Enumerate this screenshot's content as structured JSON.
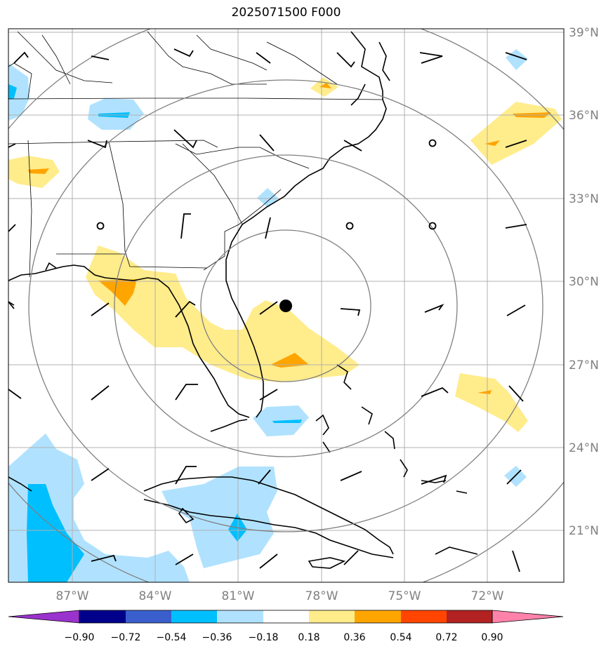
{
  "title": "2025071500 F000",
  "map": {
    "lat_labels": [
      "39°N",
      "36°N",
      "33°N",
      "30°N",
      "27°N",
      "24°N",
      "21°N"
    ],
    "lon_labels": [
      "87°W",
      "84°W",
      "81°W",
      "78°W",
      "75°W",
      "72°W"
    ],
    "center_marker": "storm-center-dot",
    "range_rings": 5
  },
  "colorbar": {
    "labels": [
      "−0.90",
      "−0.72",
      "−0.54",
      "−0.36",
      "−0.18",
      "0.18",
      "0.36",
      "0.54",
      "0.72",
      "0.90"
    ],
    "colors": [
      "#9a32cd",
      "#00008b",
      "#3a5fcd",
      "#00bfff",
      "#b0e2ff",
      "#ffffff",
      "#ffec8b",
      "#ffa500",
      "#ff4500",
      "#b22222",
      "#ff82ab"
    ]
  }
}
